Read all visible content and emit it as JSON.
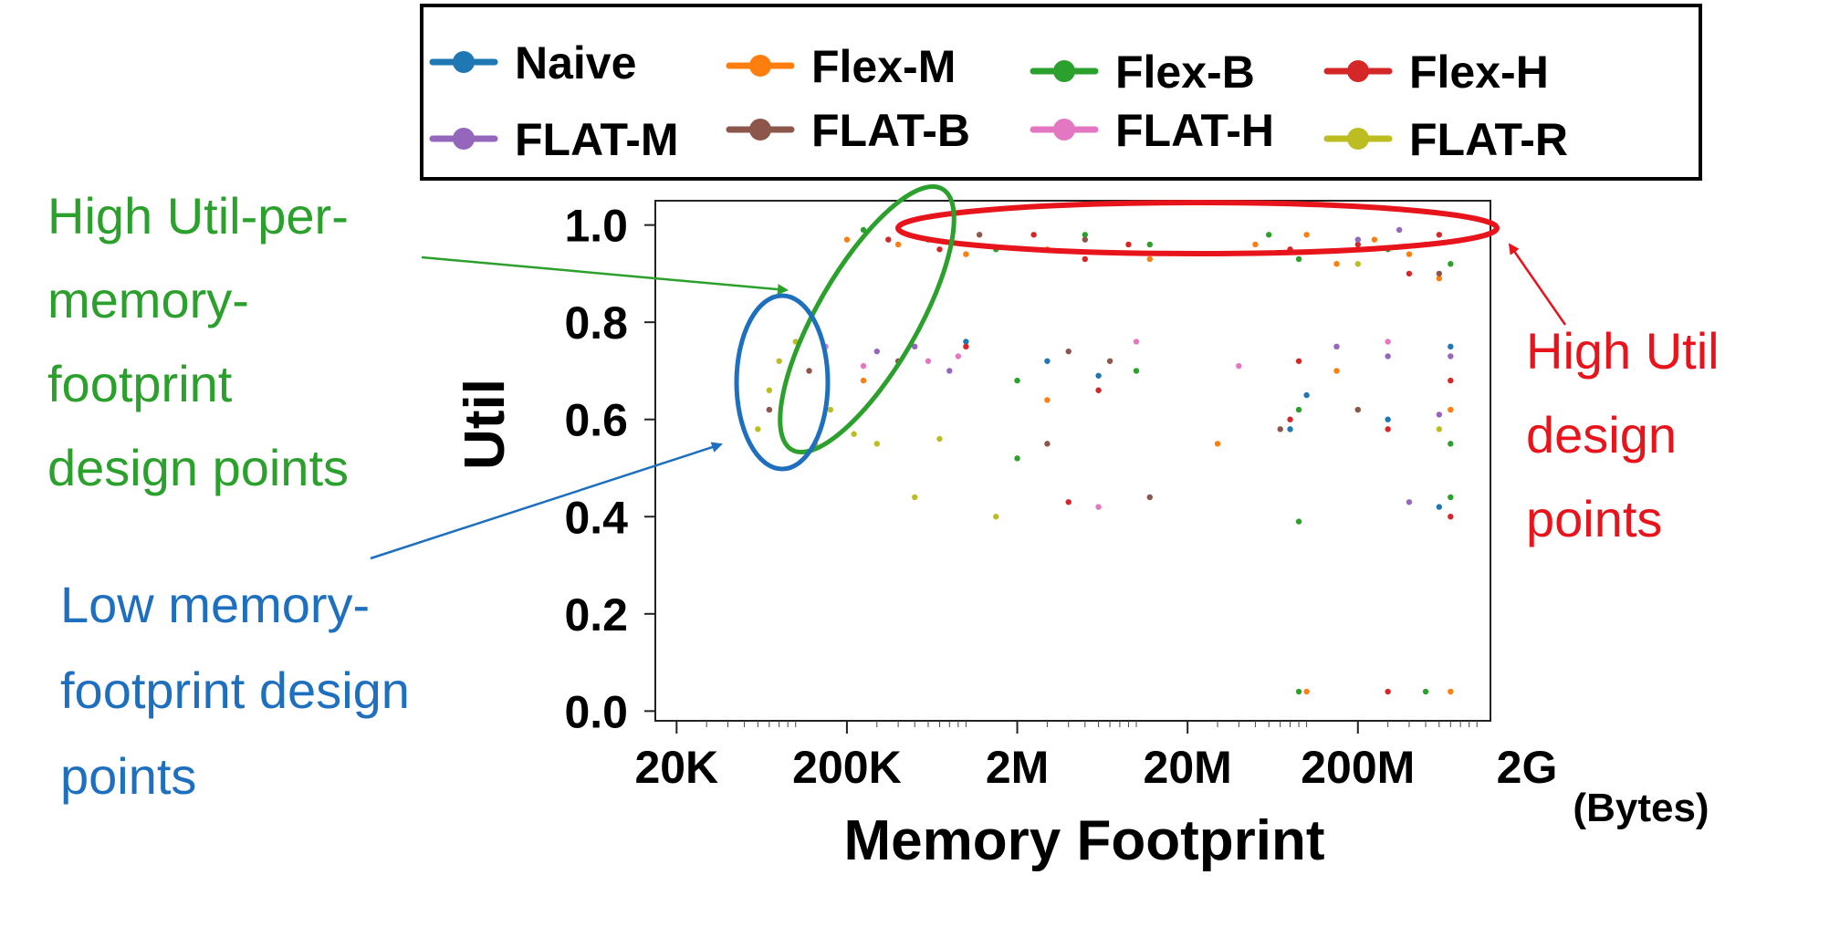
{
  "chart_data": {
    "type": "scatter",
    "xlabel": "Memory Footprint",
    "x_unit": "(Bytes)",
    "ylabel": "Util",
    "x_scale": "log",
    "xlim": [
      15000,
      1200000000
    ],
    "ylim": [
      -0.02,
      1.05
    ],
    "x_ticks": [
      {
        "value": 20000,
        "label": "20K"
      },
      {
        "value": 200000,
        "label": "200K"
      },
      {
        "value": 2000000,
        "label": "2M"
      },
      {
        "value": 20000000,
        "label": "20M"
      },
      {
        "value": 200000000,
        "label": "200M"
      },
      {
        "value": 2000000000,
        "label": "2G"
      }
    ],
    "y_ticks": [
      {
        "value": 0.0,
        "label": "0.0"
      },
      {
        "value": 0.2,
        "label": "0.2"
      },
      {
        "value": 0.4,
        "label": "0.4"
      },
      {
        "value": 0.6,
        "label": "0.6"
      },
      {
        "value": 0.8,
        "label": "0.8"
      },
      {
        "value": 1.0,
        "label": "1.0"
      }
    ],
    "legend_position": "top",
    "series": [
      {
        "name": "Naive",
        "color": "#1f77b4",
        "points": [
          [
            1000000,
            0.76
          ],
          [
            3000000,
            0.72
          ],
          [
            6000000,
            0.69
          ],
          [
            80000000,
            0.58
          ],
          [
            100000000,
            0.65
          ],
          [
            300000000,
            0.6
          ],
          [
            600000000,
            0.42
          ],
          [
            700000000,
            0.75
          ]
        ]
      },
      {
        "name": "Flex-M",
        "color": "#ff7f0e",
        "points": [
          [
            200000,
            0.97
          ],
          [
            400000,
            0.96
          ],
          [
            1000000,
            0.94
          ],
          [
            3000000,
            0.95
          ],
          [
            12000000,
            0.93
          ],
          [
            50000000,
            0.96
          ],
          [
            100000000,
            0.98
          ],
          [
            150000000,
            0.92
          ],
          [
            250000000,
            0.97
          ],
          [
            400000000,
            0.94
          ],
          [
            600000000,
            0.89
          ],
          [
            700000000,
            0.62
          ],
          [
            150000000,
            0.7
          ],
          [
            30000000,
            0.55
          ],
          [
            3000000,
            0.64
          ],
          [
            250000,
            0.68
          ],
          [
            700000000,
            0.04
          ],
          [
            100000000,
            0.04
          ]
        ]
      },
      {
        "name": "Flex-B",
        "color": "#2ca02c",
        "points": [
          [
            250000,
            0.99
          ],
          [
            600000,
            0.97
          ],
          [
            1500000,
            0.95
          ],
          [
            5000000,
            0.98
          ],
          [
            12000000,
            0.96
          ],
          [
            60000000,
            0.98
          ],
          [
            90000000,
            0.93
          ],
          [
            300000000,
            0.95
          ],
          [
            700000000,
            0.92
          ],
          [
            700000000,
            0.55
          ],
          [
            90000000,
            0.62
          ],
          [
            10000000,
            0.7
          ],
          [
            2000000,
            0.68
          ],
          [
            700000000,
            0.44
          ],
          [
            90000000,
            0.39
          ],
          [
            2000000,
            0.52
          ],
          [
            90000000,
            0.04
          ],
          [
            500000000,
            0.04
          ]
        ]
      },
      {
        "name": "Flex-H",
        "color": "#d62728",
        "points": [
          [
            350000,
            0.97
          ],
          [
            700000,
            0.95
          ],
          [
            2500000,
            0.98
          ],
          [
            5000000,
            0.93
          ],
          [
            9000000,
            0.96
          ],
          [
            80000000,
            0.95
          ],
          [
            200000000,
            0.96
          ],
          [
            400000000,
            0.9
          ],
          [
            600000000,
            0.98
          ],
          [
            80000000,
            0.6
          ],
          [
            6000000,
            0.66
          ],
          [
            1000000,
            0.75
          ],
          [
            700000000,
            0.68
          ],
          [
            90000000,
            0.72
          ],
          [
            300000000,
            0.58
          ],
          [
            4000000,
            0.43
          ],
          [
            700000000,
            0.4
          ],
          [
            300000000,
            0.04
          ]
        ]
      },
      {
        "name": "FLAT-M",
        "color": "#9467bd",
        "points": [
          [
            300000,
            0.74
          ],
          [
            500000,
            0.75
          ],
          [
            800000,
            0.7
          ],
          [
            200000000,
            0.97
          ],
          [
            350000000,
            0.99
          ],
          [
            500000000,
            0.96
          ],
          [
            700000000,
            0.73
          ],
          [
            300000000,
            0.73
          ],
          [
            150000000,
            0.75
          ],
          [
            400000000,
            0.43
          ],
          [
            600000000,
            0.61
          ]
        ]
      },
      {
        "name": "FLAT-B",
        "color": "#8c564b",
        "points": [
          [
            70000,
            0.62
          ],
          [
            120000,
            0.7
          ],
          [
            400000,
            0.72
          ],
          [
            1200000,
            0.98
          ],
          [
            4000000,
            0.74
          ],
          [
            7000000,
            0.72
          ],
          [
            70000000,
            0.58
          ],
          [
            200000000,
            0.62
          ],
          [
            600000000,
            0.9
          ],
          [
            3000000,
            0.55
          ],
          [
            12000000,
            0.44
          ],
          [
            5000000,
            0.97
          ]
        ]
      },
      {
        "name": "FLAT-H",
        "color": "#e377c2",
        "points": [
          [
            150000,
            0.75
          ],
          [
            250000,
            0.71
          ],
          [
            600000,
            0.72
          ],
          [
            900000,
            0.73
          ],
          [
            10000000,
            0.76
          ],
          [
            300000000,
            0.76
          ],
          [
            6000000,
            0.42
          ],
          [
            40000000,
            0.71
          ]
        ]
      },
      {
        "name": "FLAT-R",
        "color": "#bcbd22",
        "points": [
          [
            60000,
            0.58
          ],
          [
            70000,
            0.66
          ],
          [
            80000,
            0.72
          ],
          [
            100000,
            0.76
          ],
          [
            130000,
            0.55
          ],
          [
            160000,
            0.62
          ],
          [
            220000,
            0.57
          ],
          [
            300000,
            0.55
          ],
          [
            700000,
            0.56
          ],
          [
            1500000,
            0.4
          ],
          [
            500000,
            0.44
          ],
          [
            600000000,
            0.58
          ],
          [
            200000000,
            0.92
          ]
        ]
      }
    ],
    "annotations": [
      {
        "text": [
          "High Util-per-",
          "memory-",
          "footprint",
          "design points"
        ],
        "color": "#2ca02c"
      },
      {
        "text": [
          "Low memory-",
          "footprint design",
          "points"
        ],
        "color": "#1f6fbf"
      },
      {
        "text": [
          "High Util",
          "design",
          "points"
        ],
        "color": "#e8141c"
      }
    ]
  }
}
